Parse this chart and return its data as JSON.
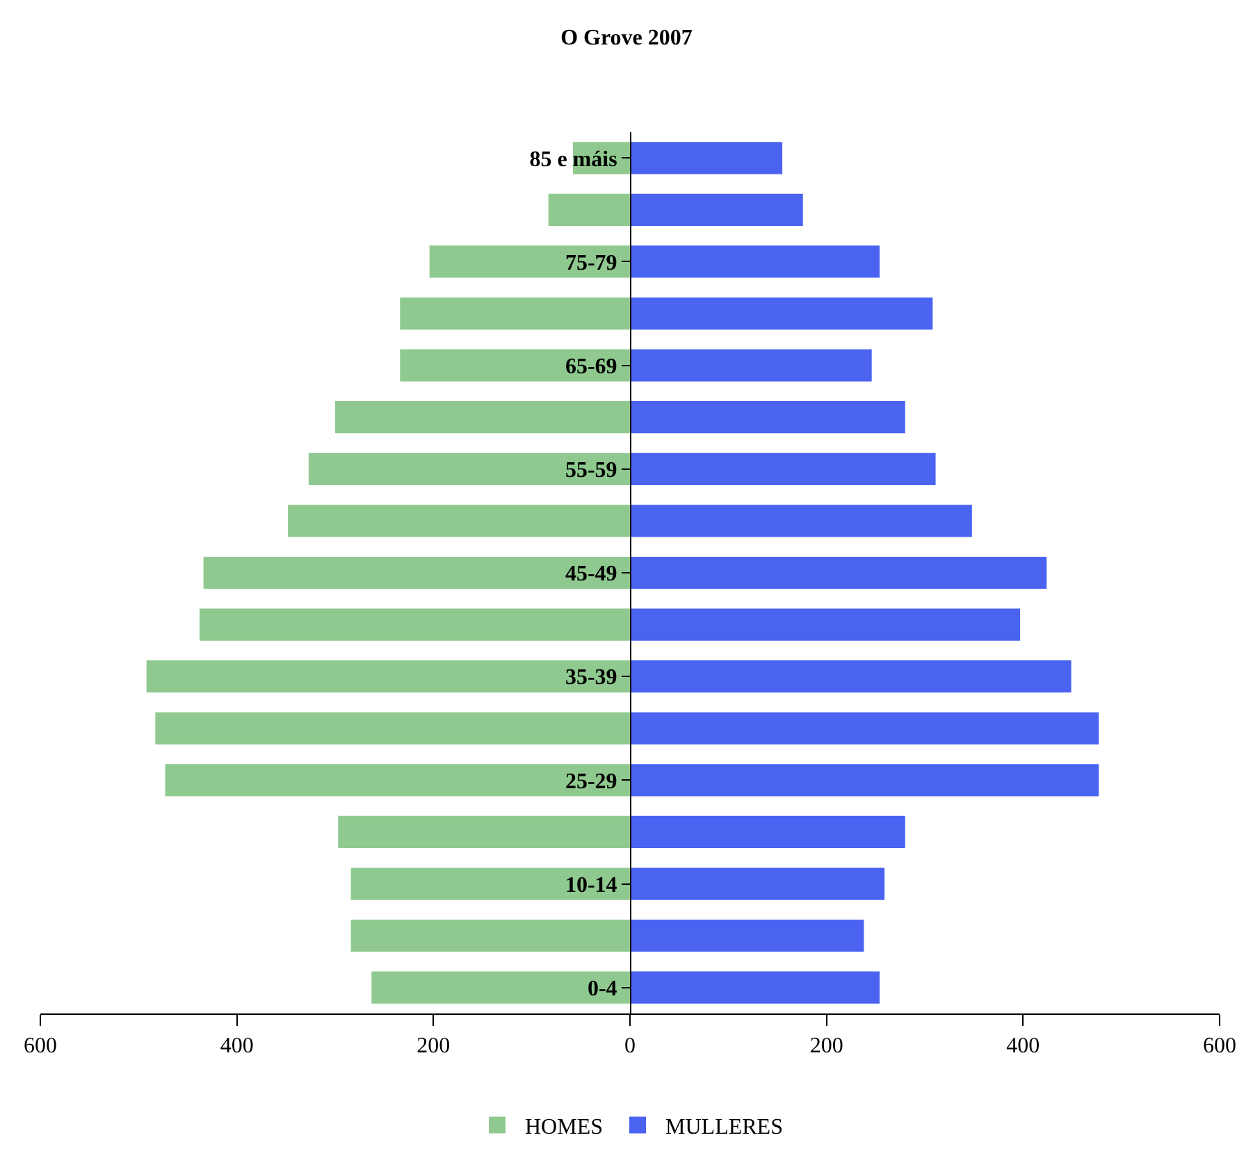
{
  "chart_data": {
    "type": "bar",
    "orientation": "horizontal",
    "title": "O Grove 2007",
    "categories": [
      "85 e máis",
      null,
      "75-79",
      null,
      "65-69",
      null,
      "55-59",
      null,
      "45-49",
      null,
      "35-39",
      null,
      "25-29",
      null,
      "10-14",
      null,
      "0-4"
    ],
    "series": [
      {
        "name": "HOMES",
        "color": "#8fc98f",
        "values": [
          -58,
          -83,
          -204,
          -234,
          -234,
          -300,
          -327,
          -348,
          -434,
          -438,
          -492,
          -483,
          -473,
          -297,
          -284,
          -284,
          -263
        ]
      },
      {
        "name": "MULLERES",
        "color": "#4a63f0",
        "values": [
          155,
          176,
          254,
          308,
          246,
          280,
          311,
          348,
          424,
          397,
          449,
          477,
          477,
          280,
          259,
          238,
          254
        ]
      }
    ],
    "xlim": [
      -600,
      600
    ],
    "xticks": [
      {
        "value": -600,
        "label": "600"
      },
      {
        "value": -400,
        "label": "400"
      },
      {
        "value": -200,
        "label": "200"
      },
      0,
      200,
      400,
      600
    ],
    "stacked": true,
    "legend": "bottom"
  }
}
